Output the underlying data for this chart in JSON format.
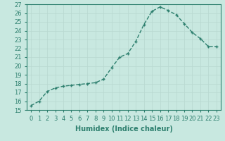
{
  "x": [
    0,
    1,
    2,
    3,
    4,
    5,
    6,
    7,
    8,
    9,
    10,
    11,
    12,
    13,
    14,
    15,
    16,
    17,
    18,
    19,
    20,
    21,
    22,
    23
  ],
  "y": [
    15.5,
    16.0,
    17.1,
    17.5,
    17.7,
    17.8,
    17.9,
    18.0,
    18.1,
    18.5,
    19.8,
    21.0,
    21.4,
    22.8,
    24.7,
    26.2,
    26.7,
    26.3,
    25.8,
    24.8,
    23.8,
    23.1,
    22.2,
    22.2
  ],
  "line_color": "#2d7f6e",
  "marker": "+",
  "bg_color": "#c8e8e0",
  "grid_color": "#b8d8d0",
  "xlabel": "Humidex (Indice chaleur)",
  "ylim": [
    15,
    27
  ],
  "xlim": [
    -0.5,
    23.5
  ],
  "yticks": [
    15,
    16,
    17,
    18,
    19,
    20,
    21,
    22,
    23,
    24,
    25,
    26,
    27
  ],
  "xticks": [
    0,
    1,
    2,
    3,
    4,
    5,
    6,
    7,
    8,
    9,
    10,
    11,
    12,
    13,
    14,
    15,
    16,
    17,
    18,
    19,
    20,
    21,
    22,
    23
  ],
  "tick_fontsize": 6,
  "label_fontsize": 7,
  "line_width": 1.0,
  "marker_size": 3.5
}
